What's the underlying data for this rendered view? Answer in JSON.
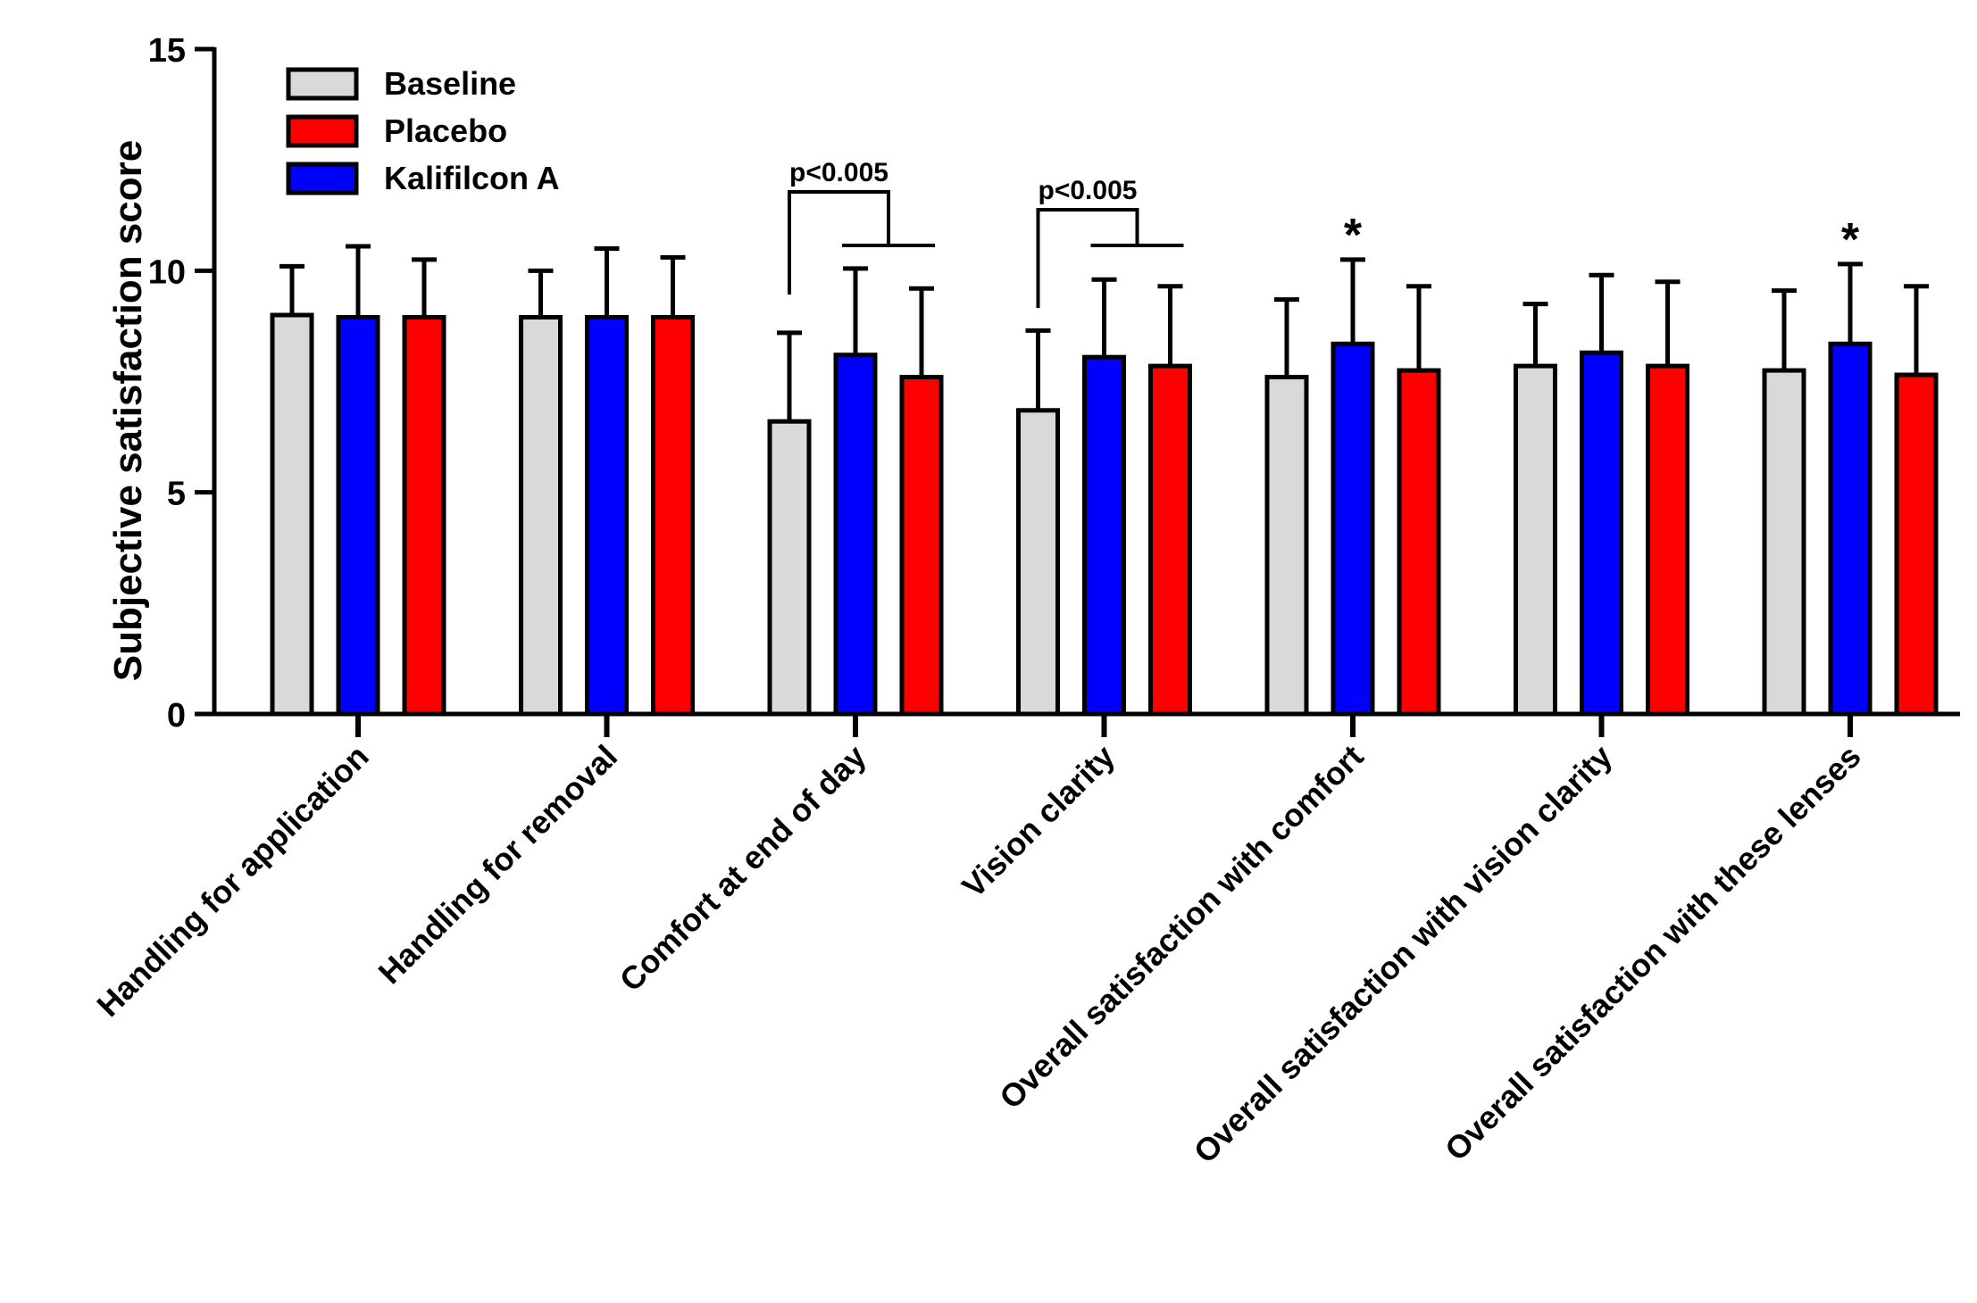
{
  "chart_data": {
    "type": "bar",
    "title": "",
    "xlabel": "",
    "ylabel": "Subjective satisfaction score",
    "ylim": [
      0,
      15
    ],
    "yticks": [
      0,
      5,
      10,
      15
    ],
    "categories": [
      "Handling for application",
      "Handling for removal",
      "Comfort at end of day",
      "Vision clarity",
      "Overall satisfaction with comfort",
      "Overall satisfaction with vision clarity",
      "Overall satisfaction with these lenses"
    ],
    "legend": {
      "placement": "top-left",
      "entries": [
        {
          "label": "Baseline",
          "color": "#d9d9d9"
        },
        {
          "label": "Placebo",
          "color": "#ff0000"
        },
        {
          "label": "Kalifilcon A",
          "color": "#0000ff"
        }
      ]
    },
    "bars": [
      [
        {
          "color": "#d9d9d9",
          "value": 9.0,
          "error": 1.1
        },
        {
          "color": "#0000ff",
          "value": 8.95,
          "error": 1.6
        },
        {
          "color": "#ff0000",
          "value": 8.95,
          "error": 1.3
        }
      ],
      [
        {
          "color": "#d9d9d9",
          "value": 8.95,
          "error": 1.05
        },
        {
          "color": "#0000ff",
          "value": 8.95,
          "error": 1.55
        },
        {
          "color": "#ff0000",
          "value": 8.95,
          "error": 1.35
        }
      ],
      [
        {
          "color": "#d9d9d9",
          "value": 6.6,
          "error": 2.0
        },
        {
          "color": "#0000ff",
          "value": 8.1,
          "error": 1.95
        },
        {
          "color": "#ff0000",
          "value": 7.6,
          "error": 2.0
        }
      ],
      [
        {
          "color": "#d9d9d9",
          "value": 6.85,
          "error": 1.8
        },
        {
          "color": "#0000ff",
          "value": 8.05,
          "error": 1.75
        },
        {
          "color": "#ff0000",
          "value": 7.85,
          "error": 1.8
        }
      ],
      [
        {
          "color": "#d9d9d9",
          "value": 7.6,
          "error": 1.75
        },
        {
          "color": "#0000ff",
          "value": 8.35,
          "error": 1.9
        },
        {
          "color": "#ff0000",
          "value": 7.75,
          "error": 1.9
        }
      ],
      [
        {
          "color": "#d9d9d9",
          "value": 7.85,
          "error": 1.4
        },
        {
          "color": "#0000ff",
          "value": 8.15,
          "error": 1.75
        },
        {
          "color": "#ff0000",
          "value": 7.85,
          "error": 1.9
        }
      ],
      [
        {
          "color": "#d9d9d9",
          "value": 7.75,
          "error": 1.8
        },
        {
          "color": "#0000ff",
          "value": 8.35,
          "error": 1.8
        },
        {
          "color": "#ff0000",
          "value": 7.65,
          "error": 2.0
        }
      ]
    ],
    "annotations": [
      {
        "type": "bracket",
        "category_index": 2,
        "text": "p<0.005"
      },
      {
        "type": "bracket",
        "category_index": 3,
        "text": "p<0.005"
      },
      {
        "type": "star",
        "category_index": 4,
        "bar_index": 1,
        "text": "*"
      },
      {
        "type": "star",
        "category_index": 6,
        "bar_index": 1,
        "text": "*"
      }
    ]
  }
}
